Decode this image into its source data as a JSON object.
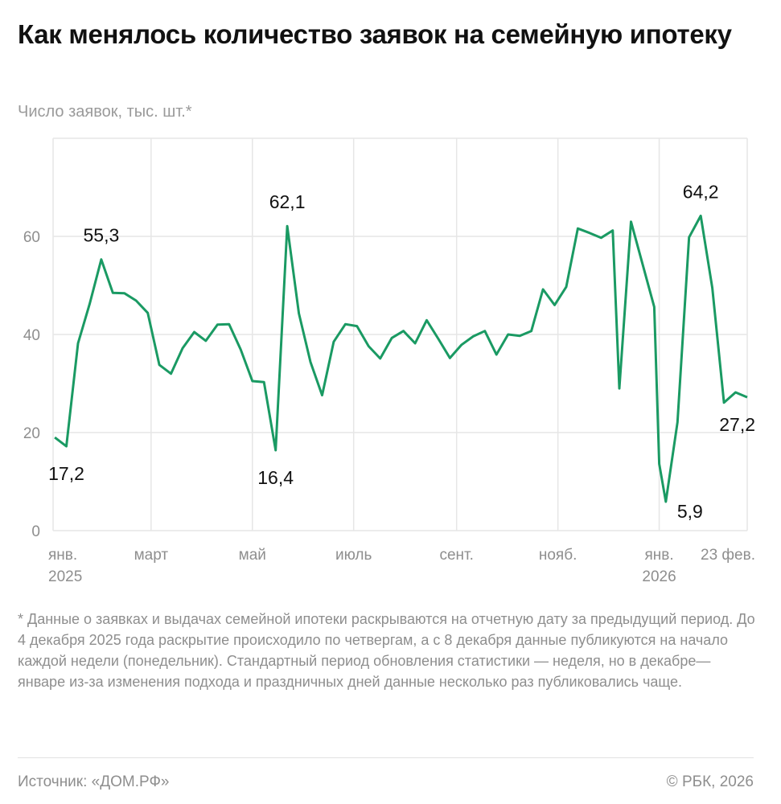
{
  "title": "Как менялось количество заявок на семейную ипотеку",
  "subtitle": "Число заявок, тыс. шт.*",
  "footnote": "* Данные о заявках и выдачах семейной ипотеки раскрываются на отчетную дату за предыдущий период. До 4 декабря 2025 года раскрытие происходило по четвергам, а с 8 декабря данные публикуются на начало каждой недели (понедельник). Стандартный период обновления статистики — неделя, но в декабре—январе из-за изменения подхода и праздничных дней данные несколько раз публиковались чаще.",
  "source": "Источник: «ДОМ.РФ»",
  "copyright": "© РБК, 2026",
  "chart_data": {
    "type": "line",
    "line_color": "#1a9a63",
    "grid_color": "#e6e6e6",
    "grid": true,
    "ylim": [
      0,
      70
    ],
    "yticks": [
      0,
      20,
      40,
      60
    ],
    "xlim": [
      "2025-01-01",
      "2026-02-23"
    ],
    "xticks": [
      {
        "date": "2025-01-01",
        "label": "янв.",
        "sublabel": "2025"
      },
      {
        "date": "2025-03-01",
        "label": "март",
        "sublabel": ""
      },
      {
        "date": "2025-05-01",
        "label": "май",
        "sublabel": ""
      },
      {
        "date": "2025-07-01",
        "label": "июль",
        "sublabel": ""
      },
      {
        "date": "2025-09-01",
        "label": "сент.",
        "sublabel": ""
      },
      {
        "date": "2025-11-01",
        "label": "нояб.",
        "sublabel": ""
      },
      {
        "date": "2026-01-01",
        "label": "янв.",
        "sublabel": "2026"
      },
      {
        "date": "2026-02-23",
        "label": "23 фев.",
        "sublabel": ""
      }
    ],
    "x": [
      "2025-01-02",
      "2025-01-09",
      "2025-01-16",
      "2025-01-23",
      "2025-01-30",
      "2025-02-06",
      "2025-02-13",
      "2025-02-20",
      "2025-02-27",
      "2025-03-06",
      "2025-03-13",
      "2025-03-20",
      "2025-03-27",
      "2025-04-03",
      "2025-04-10",
      "2025-04-17",
      "2025-04-24",
      "2025-05-01",
      "2025-05-08",
      "2025-05-15",
      "2025-05-22",
      "2025-05-29",
      "2025-06-05",
      "2025-06-12",
      "2025-06-19",
      "2025-06-26",
      "2025-07-03",
      "2025-07-10",
      "2025-07-17",
      "2025-07-24",
      "2025-07-31",
      "2025-08-07",
      "2025-08-14",
      "2025-08-21",
      "2025-08-28",
      "2025-09-04",
      "2025-09-11",
      "2025-09-18",
      "2025-09-25",
      "2025-10-02",
      "2025-10-09",
      "2025-10-16",
      "2025-10-23",
      "2025-10-30",
      "2025-11-06",
      "2025-11-13",
      "2025-11-20",
      "2025-11-27",
      "2025-12-04",
      "2025-12-08",
      "2025-12-15",
      "2025-12-29",
      "2026-01-01",
      "2026-01-05",
      "2026-01-12",
      "2026-01-19",
      "2026-01-26",
      "2026-02-02",
      "2026-02-09",
      "2026-02-16",
      "2026-02-23"
    ],
    "values": [
      19.0,
      17.2,
      38.2,
      46.2,
      55.3,
      48.5,
      48.4,
      46.9,
      44.4,
      33.8,
      32.0,
      37.2,
      40.5,
      38.7,
      42.0,
      42.1,
      36.9,
      30.5,
      30.3,
      16.4,
      62.1,
      44.3,
      34.4,
      27.6,
      38.5,
      42.1,
      41.7,
      37.6,
      35.1,
      39.3,
      40.7,
      38.2,
      42.9,
      39.1,
      35.2,
      37.9,
      39.6,
      40.7,
      35.9,
      40.0,
      39.7,
      40.7,
      49.2,
      46.0,
      49.7,
      61.6,
      60.7,
      59.7,
      61.2,
      29.0,
      63.0,
      45.6,
      13.6,
      5.9,
      22.1,
      59.8,
      64.2,
      49.5,
      26.1,
      28.2,
      27.2
    ],
    "annotations": [
      {
        "date": "2025-01-09",
        "value": 17.2,
        "text": "17,2",
        "position": "below"
      },
      {
        "date": "2025-01-30",
        "value": 55.3,
        "text": "55,3",
        "position": "above"
      },
      {
        "date": "2025-05-15",
        "value": 16.4,
        "text": "16,4",
        "position": "below"
      },
      {
        "date": "2025-05-22",
        "value": 62.1,
        "text": "62,1",
        "position": "above"
      },
      {
        "date": "2026-01-05",
        "value": 5.9,
        "text": "5,9",
        "position": "below-right"
      },
      {
        "date": "2026-01-26",
        "value": 64.2,
        "text": "64,2",
        "position": "above"
      },
      {
        "date": "2026-02-23",
        "value": 27.2,
        "text": "27,2",
        "position": "below"
      }
    ]
  }
}
